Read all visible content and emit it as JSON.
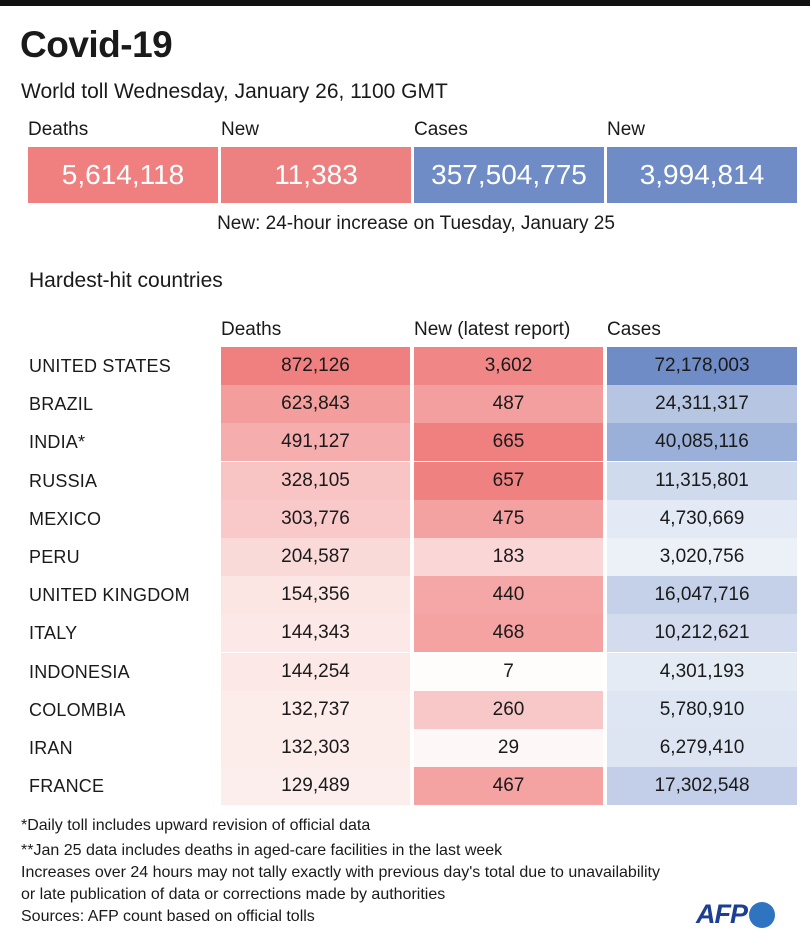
{
  "title": "Covid-19",
  "subtitle": "World toll Wednesday, January 26, 1100 GMT",
  "summary": {
    "labels": [
      "Deaths",
      "New",
      "Cases",
      "New"
    ],
    "values": [
      "5,614,118",
      "11,383",
      "357,504,775",
      "3,994,814"
    ],
    "colors": [
      "#f08080",
      "#ed8080",
      "#6f8cc6",
      "#6f8cc6"
    ],
    "note": "New: 24-hour increase on Tuesday, January 25"
  },
  "section_title": "Hardest-hit countries",
  "columns": [
    "Deaths",
    "New (latest report)",
    "Cases"
  ],
  "colors": {
    "deaths_max": "#f08080",
    "cases_max": "#6f8cc6",
    "cell_min": "#fdf4f2",
    "cases_min": "#f3f6fb"
  },
  "chart_data": {
    "type": "table",
    "title": "Hardest-hit countries",
    "columns": [
      "Deaths",
      "New (latest report)",
      "Cases"
    ],
    "rows": [
      {
        "country": "UNITED STATES",
        "deaths": "872,126",
        "new": "3,602",
        "cases": "72,178,003",
        "d": 872126,
        "n": 3602,
        "c": 72178003
      },
      {
        "country": "BRAZIL",
        "deaths": "623,843",
        "new": "487",
        "cases": "24,311,317",
        "d": 623843,
        "n": 487,
        "c": 24311317
      },
      {
        "country": "INDIA*",
        "deaths": "491,127",
        "new": "665",
        "cases": "40,085,116",
        "d": 491127,
        "n": 665,
        "c": 40085116
      },
      {
        "country": "RUSSIA",
        "deaths": "328,105",
        "new": "657",
        "cases": "11,315,801",
        "d": 328105,
        "n": 657,
        "c": 11315801
      },
      {
        "country": "MEXICO",
        "deaths": "303,776",
        "new": "475",
        "cases": "4,730,669",
        "d": 303776,
        "n": 475,
        "c": 4730669
      },
      {
        "country": "PERU",
        "deaths": "204,587",
        "new": "183",
        "cases": "3,020,756",
        "d": 204587,
        "n": 183,
        "c": 3020756
      },
      {
        "country": "UNITED KINGDOM",
        "deaths": "154,356",
        "new": "440",
        "cases": "16,047,716",
        "d": 154356,
        "n": 440,
        "c": 16047716
      },
      {
        "country": "ITALY",
        "deaths": "144,343",
        "new": "468",
        "cases": "10,212,621",
        "d": 144343,
        "n": 468,
        "c": 10212621
      },
      {
        "country": "INDONESIA",
        "deaths": "144,254",
        "new": "7",
        "cases": "4,301,193",
        "d": 144254,
        "n": 7,
        "c": 4301193
      },
      {
        "country": "COLOMBIA",
        "deaths": "132,737",
        "new": "260",
        "cases": "5,780,910",
        "d": 132737,
        "n": 260,
        "c": 5780910
      },
      {
        "country": "IRAN",
        "deaths": "132,303",
        "new": "29",
        "cases": "6,279,410",
        "d": 132303,
        "n": 29,
        "c": 6279410
      },
      {
        "country": "FRANCE",
        "deaths": "129,489",
        "new": "467",
        "cases": "17,302,548",
        "d": 129489,
        "n": 467,
        "c": 17302548
      }
    ]
  },
  "footnotes": [
    "*Daily toll includes upward revision of official data",
    "**Jan 25 data includes deaths in aged-care facilities in the last week",
    "Increases over 24 hours may not tally exactly with previous day's total due to unavailability",
    "or late publication of data or corrections made by authorities",
    "Sources: AFP count based on official tolls"
  ],
  "logo": "AFP"
}
